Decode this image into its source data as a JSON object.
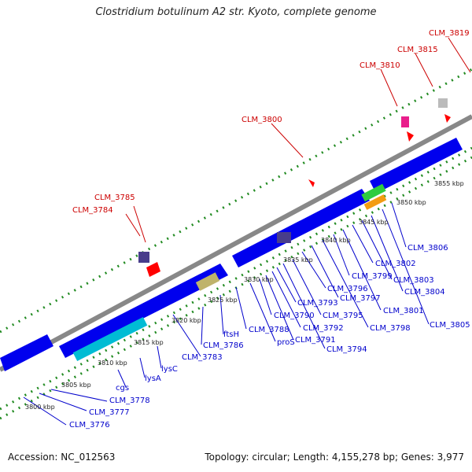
{
  "title": "Clostridium botulinum A2 str. Kyoto, complete genome",
  "footer": {
    "accession": "Accession: NC_012563",
    "topology": "Topology: circular; Length: 4,155,278 bp; Genes: 3,977"
  },
  "scale_ticks": [
    "3800 kbp",
    "3805 kbp",
    "3810 kbp",
    "3815 kbp",
    "3820 kbp",
    "3825 kbp",
    "3830 kbp",
    "3835 kbp",
    "3840 kbp",
    "3845 kbp",
    "3850 kbp",
    "3855 kbp"
  ],
  "top_labels": [
    "CLM_3784",
    "CLM_3785",
    "CLM_3800",
    "CLM_3810",
    "CLM_3815",
    "CLM_3819"
  ],
  "bottom_labels": [
    "CLM_3776",
    "CLM_3777",
    "CLM_3778",
    "cgs",
    "lysA",
    "lysC",
    "CLM_3783",
    "CLM_3786",
    "ftsH",
    "CLM_3788",
    "proS",
    "CLM_3790",
    "CLM_3791",
    "CLM_3792",
    "CLM_3793",
    "CLM_3794",
    "CLM_3795",
    "CLM_3796",
    "CLM_3797",
    "CLM_3798",
    "CLM_3799",
    "CLM_3801",
    "CLM_3802",
    "CLM_3803",
    "CLM_3804",
    "CLM_3805",
    "CLM_3806"
  ],
  "colors": {
    "backbone": "#888888",
    "gene_forward": "#0000ee",
    "top_label": "#cc0000",
    "bottom_label": "#0000cc",
    "dots": "#228b22"
  }
}
